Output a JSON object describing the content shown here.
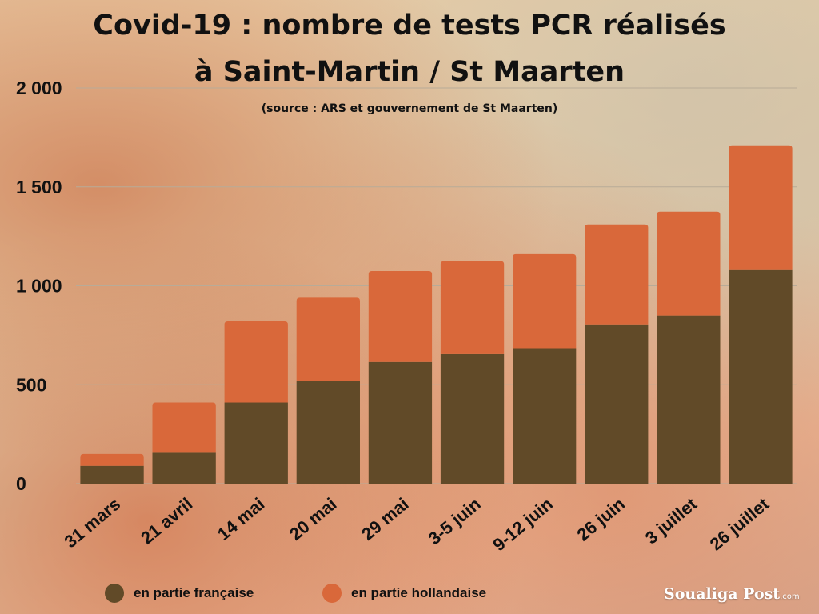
{
  "title_line1": "Covid-19 : nombre de tests PCR réalisés",
  "title_line2": "à Saint-Martin / St Maarten",
  "subtitle": "(source : ARS et gouvernement de St Maarten)",
  "logo": {
    "brand": "Soualiga Post",
    "suffix": ".com"
  },
  "colors": {
    "french": "#614a28",
    "dutch": "#d9683a",
    "grid": "#b8ab98"
  },
  "legend": [
    {
      "label": "en partie française",
      "color": "#614a28"
    },
    {
      "label": "en partie hollandaise",
      "color": "#d9683a"
    }
  ],
  "chart_data": {
    "type": "bar",
    "stacked": true,
    "categories": [
      "31 mars",
      "21 avril",
      "14 mai",
      "20 mai",
      "29 mai",
      "3-5 juin",
      "9-12  juin",
      "26 juin",
      "3 juillet",
      "26 juillet"
    ],
    "series": [
      {
        "name": "en partie française",
        "values": [
          90,
          160,
          410,
          520,
          615,
          655,
          685,
          805,
          850,
          1080
        ]
      },
      {
        "name": "en partie hollandaise",
        "values": [
          60,
          250,
          410,
          420,
          460,
          470,
          475,
          505,
          525,
          630
        ]
      }
    ],
    "ylim": [
      0,
      2000
    ],
    "yticks": [
      0,
      500,
      1000,
      1500,
      2000
    ],
    "ytick_labels": [
      "0",
      "500",
      "1 000",
      "1 500",
      "2 000"
    ],
    "grid": true,
    "legend_position": "bottom-left"
  }
}
